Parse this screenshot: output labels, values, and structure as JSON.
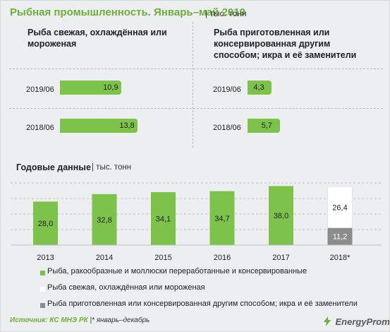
{
  "header": {
    "title": "Рыбная промышленность. Январь–май 2019",
    "unit": "| тыс. тонн"
  },
  "top_left": {
    "title": "Рыба свежая, охлаждённая или мороженая",
    "rows": [
      {
        "label": "2019/06",
        "value": 10.9,
        "text": "10,9"
      },
      {
        "label": "2018/06",
        "value": 13.8,
        "text": "13,8"
      }
    ]
  },
  "top_right": {
    "title": "Рыба приготовленная или консервированная другим способом; икра и её заменители",
    "rows": [
      {
        "label": "2019/06",
        "value": 4.3,
        "text": "4,3"
      },
      {
        "label": "2018/06",
        "value": 5.7,
        "text": "5,7"
      }
    ]
  },
  "annual": {
    "title": "Годовые данные",
    "unit": "| тыс. тонн"
  },
  "chart_data": [
    {
      "type": "bar",
      "orientation": "horizontal",
      "title": "Рыба свежая, охлаждённая или мороженая",
      "categories": [
        "2019/06",
        "2018/06"
      ],
      "values": [
        10.9,
        13.8
      ],
      "color": "#7dc24b"
    },
    {
      "type": "bar",
      "orientation": "horizontal",
      "title": "Рыба приготовленная или консервированная другим способом; икра и её заменители",
      "categories": [
        "2019/06",
        "2018/06"
      ],
      "values": [
        4.3,
        5.7
      ],
      "color": "#7dc24b"
    },
    {
      "type": "bar",
      "title": "Годовые данные",
      "categories": [
        "2013",
        "2014",
        "2015",
        "2016",
        "2017",
        "2018*"
      ],
      "series": [
        {
          "name": "Рыба, ракообразные и моллюски переработанные и консервированные",
          "values": [
            28.0,
            32.8,
            34.1,
            34.7,
            38.0,
            null
          ],
          "labels": [
            "28,0",
            "32,8",
            "34,1",
            "34,7",
            "38,0",
            ""
          ],
          "color": "#7dc24b"
        },
        {
          "name": "Рыба свежая, охлаждённая или мороженая",
          "values": [
            null,
            null,
            null,
            null,
            null,
            26.4
          ],
          "labels": [
            "",
            "",
            "",
            "",
            "",
            "26,4"
          ],
          "color": "#ffffff"
        },
        {
          "name": "Рыба приготовленная или консервированная другим способом; икра и её заменители",
          "values": [
            null,
            null,
            null,
            null,
            null,
            11.2
          ],
          "labels": [
            "",
            "",
            "",
            "",
            "",
            "11,2"
          ],
          "color": "#8c8c8c"
        }
      ],
      "ylim": [
        0,
        40
      ],
      "grid": true
    }
  ],
  "legend": [
    {
      "label": "Рыба, ракообразные и моллюски переработанные и консервированные",
      "color": "#7dc24b"
    },
    {
      "label": "Рыба свежая, охлаждённая или мороженая",
      "color": "#ffffff"
    },
    {
      "label": "Рыба приготовленная или консервированная другим способом; икра и её заменители",
      "color": "#8c8c8c"
    }
  ],
  "footer": {
    "source_label": "Источник:",
    "source_text": "КС МНЭ РК",
    "note": "|* январь–декабрь",
    "brand": "EnergyProm"
  }
}
